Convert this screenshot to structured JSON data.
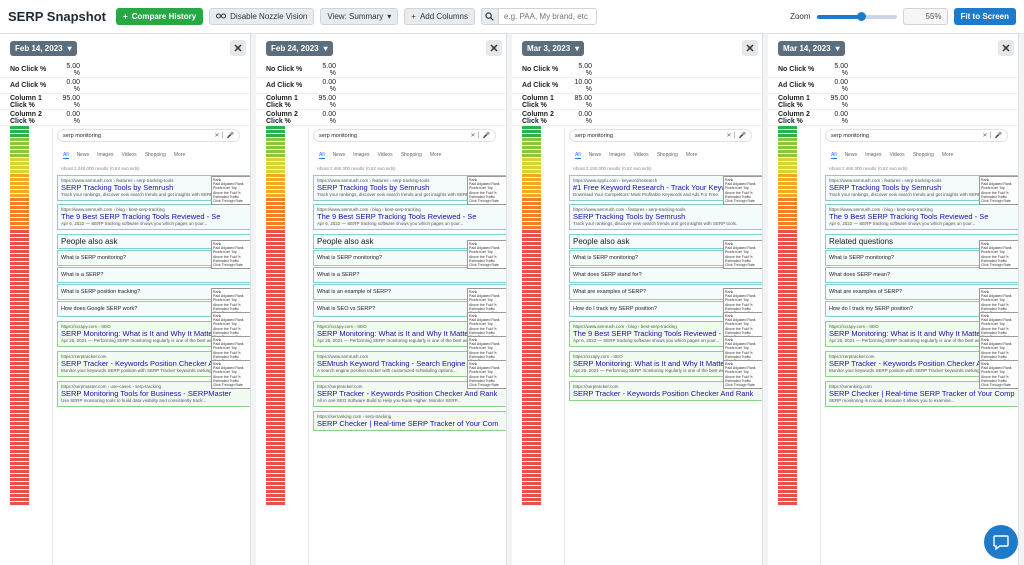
{
  "header": {
    "title": "SERP Snapshot",
    "compare_label": "Compare History",
    "disable_label": "Disable Nozzle Vision",
    "view_label": "View: Summary",
    "add_columns_label": "Add Columns",
    "search_placeholder": "e.g. PAA, My brand, etc",
    "zoom_label": "Zoom",
    "zoom_value": "55%",
    "zoom_fraction": 0.55,
    "fit_label": "Fit to Screen"
  },
  "metric_labels": [
    "No Click %",
    "Ad Click %",
    "Column 1 Click %",
    "Column 2 Click %"
  ],
  "columns": [
    {
      "date": "Feb 14, 2023",
      "metrics": [
        "5.00 %",
        "0.00 %",
        "95.00 %",
        "0.00 %"
      ],
      "query": "serp monitoring",
      "result_count": "About 2,240,000 results (0.63 seconds)",
      "results": [
        {
          "url": "https://www.semrush.com › features › serp-tracking-tools",
          "title": "SERP Tracking Tools by Semrush",
          "desc": "Track your rankings, discover new search trends and get insights with SERP tools."
        },
        {
          "url": "https://www.semrush.com › blog › best-serp-tracking",
          "title": "The 9 Best SERP Tracking Tools Reviewed - Se",
          "desc": "Apr 6, 2022 — SERP tracking software shows you which pages on your..."
        }
      ],
      "paa_title": "People also ask",
      "paa": [
        "What is SERP monitoring?",
        "What is a SERP?",
        "What is SERP position tracking?",
        "How does Google SERP work?"
      ],
      "results2": [
        {
          "url": "https://scrapy.com › SEO",
          "title": "SERP Monitoring: What is It and Why It Matters - Scrapy",
          "desc": "Apr 25, 2021 — Performing SERP monitoring regularly is one of the best ways..."
        },
        {
          "url": "https://serptracker.com",
          "title": "SERP Tracker - Keywords Position Checker And Rank",
          "desc": "Monitor your keywords SERP position with SERP Tracker keywords ranking."
        },
        {
          "url": "https://serpmaster.com › use-cases › serp-tracking",
          "title": "SERP Monitoring Tools for Business - SERPMaster",
          "desc": "Use SERP monitoring tools to build data visibility and consistently track..."
        }
      ]
    },
    {
      "date": "Feb 24, 2023",
      "metrics": [
        "5.00 %",
        "0.00 %",
        "95.00 %",
        "0.00 %"
      ],
      "query": "serp monitoring",
      "result_count": "About 2,460,000 results (0.62 seconds)",
      "results": [
        {
          "url": "https://www.semrush.com › features › serp-tracking-tools",
          "title": "SERP Tracking Tools by Semrush",
          "desc": "Track your rankings, discover new search trends and get insights with SERP tools."
        },
        {
          "url": "https://www.semrush.com › blog › best-serp-tracking",
          "title": "The 9 Best SERP Tracking Tools Reviewed - Se",
          "desc": "Apr 6, 2022 — SERP tracking software shows you which pages on your..."
        }
      ],
      "paa_title": "People also ask",
      "paa": [
        "What is SERP monitoring?",
        "What is a SERP?",
        "What is an example of SERP?",
        "What is SEO vs SERP?"
      ],
      "results2": [
        {
          "url": "https://scrapy.com › SEO",
          "title": "SERP Monitoring: What is It and Why It Matters - Scrapy",
          "desc": "Apr 25, 2021 — Performing SERP monitoring regularly is one of the best ways..."
        },
        {
          "url": "https://www.semrush.com",
          "title": "SEMrush Keyword Tracking - Search Engine P",
          "desc": "A search engine position tracker with customized scheduling options..."
        },
        {
          "url": "https://serptracker.com",
          "title": "SERP Tracker - Keywords Position Checker And Rank",
          "desc": "All in one SEO Software Build to Help you Rank Higher. Monitor SERP..."
        },
        {
          "url": "https://serranking.com › serp-tracking",
          "title": "SERP Checker | Real-time SERP Tracker of Your Com",
          "desc": ""
        }
      ]
    },
    {
      "date": "Mar 3, 2023",
      "metrics": [
        "5.00 %",
        "10.00 %",
        "85.00 %",
        "0.00 %"
      ],
      "query": "serp monitoring",
      "result_count": "About 2,150,000 results (0.62 seconds)",
      "results": [
        {
          "url": "https://www.spyfu.com › keyword/research",
          "title": "#1 Free Keyword Research - Track Your Keyword",
          "desc": "Download Your Competitors' Most Profitable Keywords and Ads For Free."
        },
        {
          "url": "https://www.semrush.com › features › serp-tracking-tools",
          "title": "SERP Tracking Tools by Semrush",
          "desc": "Track your rankings, discover new search trends and get insights with SERP tools."
        }
      ],
      "paa_title": "People also ask",
      "paa": [
        "What is SERP monitoring?",
        "What does SERP stand for?",
        "What are examples of SERP?",
        "How do I track my SERP position?"
      ],
      "results2": [
        {
          "url": "https://www.semrush.com › blog › best-serp-tracking",
          "title": "The 9 Best SERP Tracking Tools Reviewed - Se",
          "desc": "Apr 6, 2022 — SERP tracking software shows you which pages on your..."
        },
        {
          "url": "https://scrapy.com › SEO",
          "title": "SERP Monitoring: What is It and Why It Matters - Scrapy",
          "desc": "Apr 25, 2021 — Performing SERP monitoring regularly is one of the best ways..."
        },
        {
          "url": "https://serptracker.com",
          "title": "SERP Tracker - Keywords Position Checker And Rank",
          "desc": ""
        }
      ]
    },
    {
      "date": "Mar 14, 2023",
      "metrics": [
        "5.00 %",
        "0.00 %",
        "95.00 %",
        "0.00 %"
      ],
      "query": "serp monitoring",
      "result_count": "About 2,460,000 results (0.62 seconds)",
      "results": [
        {
          "url": "https://www.semrush.com › features › serp-tracking-tools",
          "title": "SERP Tracking Tools by Semrush",
          "desc": "Track your rankings, discover new search trends and get insights with SERP tools."
        },
        {
          "url": "https://www.semrush.com › blog › best-serp-tracking",
          "title": "The 9 Best SERP Tracking Tools Reviewed - Se",
          "desc": "Apr 6, 2022 — SERP tracking software shows you which pages on your..."
        }
      ],
      "paa_title": "Related questions",
      "paa": [
        "What is SERP monitoring?",
        "What does SERP mean?",
        "What are examples of SERP?",
        "How do I track my SERP position?"
      ],
      "results2": [
        {
          "url": "https://scrapy.com › SEO",
          "title": "SERP Monitoring: What is It and Why It Matters - Scrap",
          "desc": "Apr 25, 2021 — Performing SERP monitoring regularly is one of the best ways..."
        },
        {
          "url": "https://serptracker.com",
          "title": "SERP Tracker - Keywords Position Checker And Rank",
          "desc": "Monitor your keywords SERP position with SERP Tracker keywords ranking."
        },
        {
          "url": "https://seranking.com",
          "title": "SERP Checker | Real-time SERP Tracker of Your Comp",
          "desc": "SERP monitoring is crucial, because it allows you to examine..."
        }
      ]
    }
  ],
  "google_tabs": [
    "All",
    "News",
    "Images",
    "Videos",
    "Shopping",
    "More"
  ],
  "stat_lines": [
    "Rank",
    "Paid Adjusted Rank",
    "Pixels from Top",
    "Above the Fold %",
    "Estimated Traffic",
    "Click Through Rate"
  ],
  "colors": {
    "accent": "#1f7ac9",
    "green": "#28a745",
    "badge": "#5b6e7e",
    "heat": [
      "#2bb04a",
      "#8cc63f",
      "#d8d434",
      "#f5a623",
      "#f07f2c",
      "#e8504a"
    ]
  }
}
